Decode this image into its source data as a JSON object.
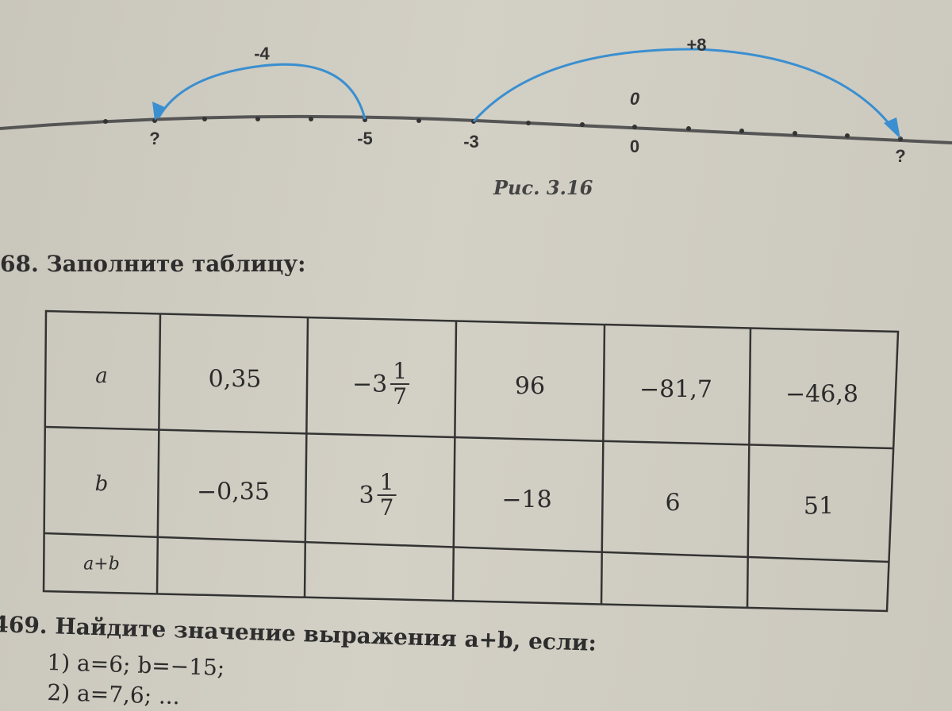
{
  "figure": {
    "jump_left_label": "-4",
    "jump_right_label": "+8",
    "origin_label": "0",
    "points": [
      "?",
      "-5",
      "-3",
      "0",
      "?"
    ],
    "arrow_color": "#3a8fd0",
    "caption": "Рис. 3.16"
  },
  "task_468": {
    "number": "68.",
    "title": "Заполните таблицу:",
    "row_headers": [
      "a",
      "b",
      "a+b"
    ],
    "row_a": [
      {
        "text": "0,35"
      },
      {
        "whole": "−3",
        "num": "1",
        "den": "7"
      },
      {
        "text": "96"
      },
      {
        "text": "−81,7"
      },
      {
        "text": "−46,8"
      }
    ],
    "row_b": [
      {
        "text": "−0,35"
      },
      {
        "whole": "3",
        "num": "1",
        "den": "7"
      },
      {
        "text": "−18"
      },
      {
        "text": "6"
      },
      {
        "text": "51"
      }
    ],
    "row_sum": [
      "",
      "",
      "",
      "",
      ""
    ]
  },
  "task_469": {
    "number": "469.",
    "title": "Найдите значение выражения a+b, если:",
    "item1": "1) a=6; b=−15;",
    "item2": "2) a=7,6; ..."
  }
}
